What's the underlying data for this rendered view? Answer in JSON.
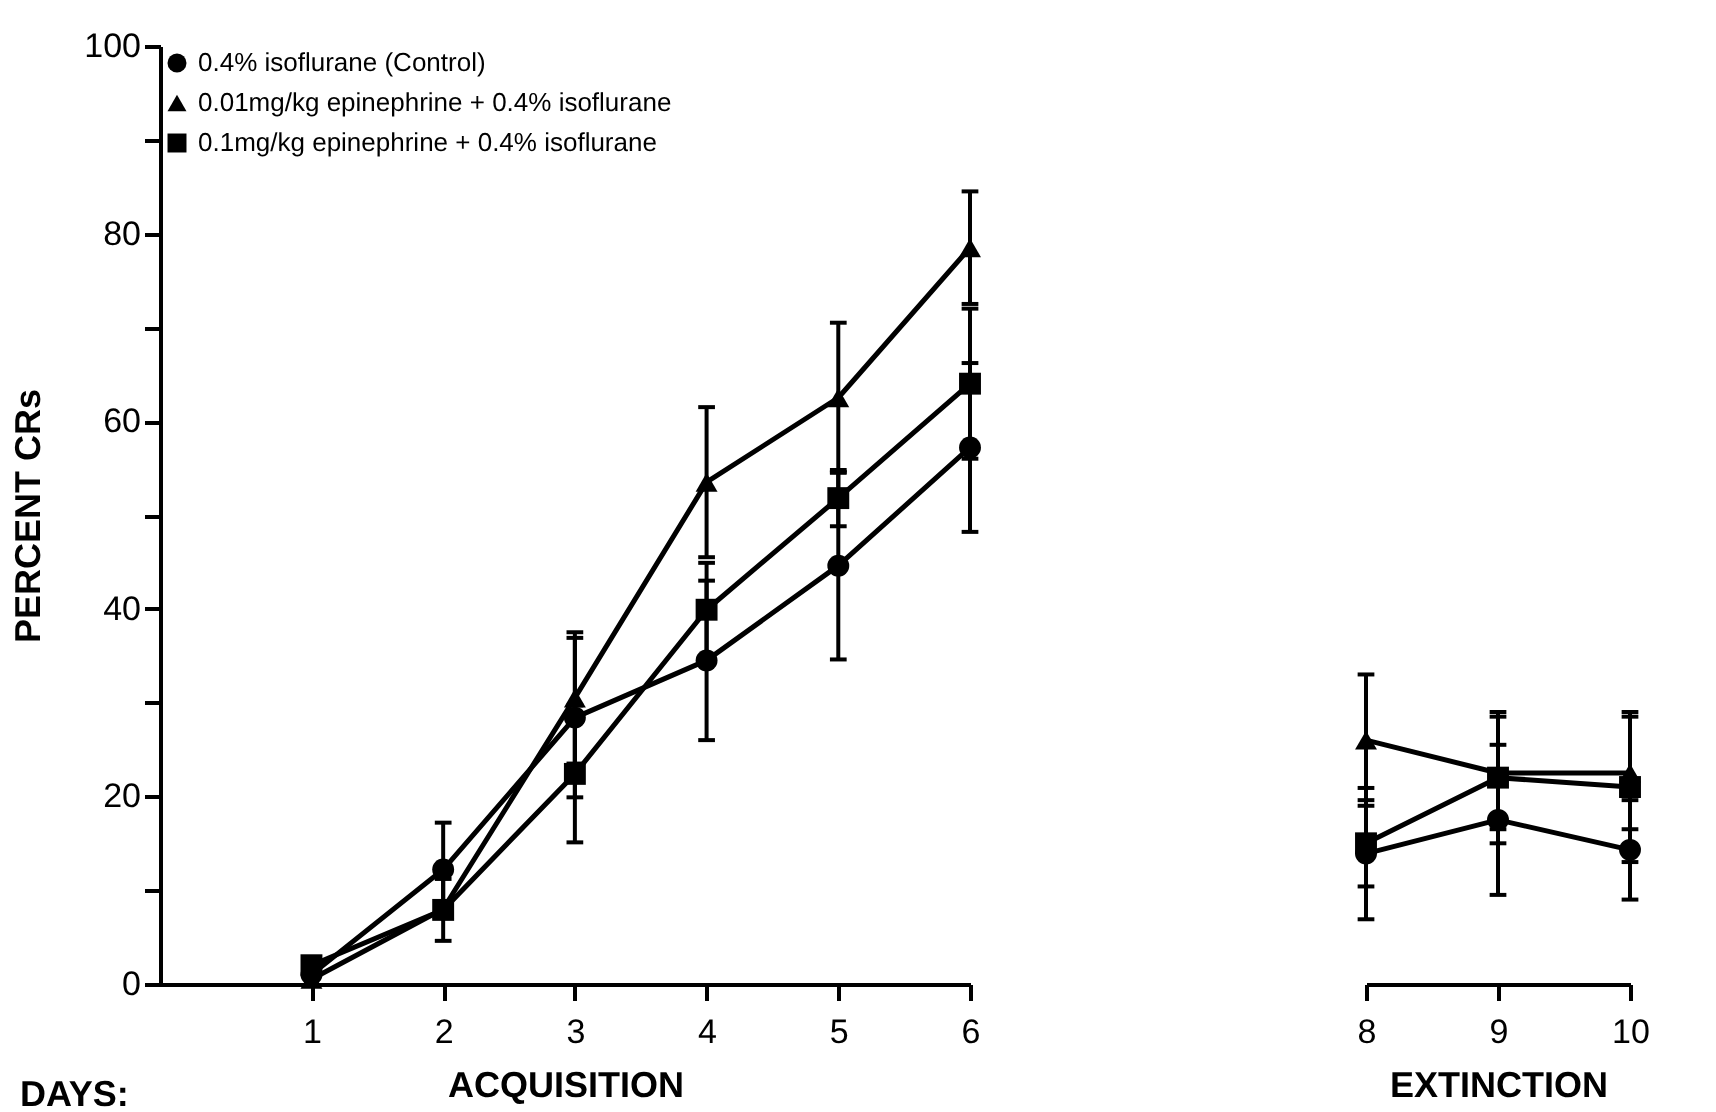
{
  "chart_data": [
    {
      "type": "line",
      "xlabel": "ACQUISITION",
      "ylabel": "PERCENT CRs",
      "x": [
        1,
        2,
        3,
        4,
        5,
        6
      ],
      "xlim": [
        -0.15,
        6
      ],
      "xticks": [
        1,
        2,
        3,
        4,
        5,
        6
      ],
      "ylim": [
        0,
        100
      ],
      "yticks": [
        0,
        {
          "value": 10,
          "label": null
        },
        20,
        {
          "value": 30,
          "label": null
        },
        40,
        {
          "value": 50,
          "label": null
        },
        60,
        {
          "value": 70,
          "label": null
        },
        80,
        {
          "value": 90,
          "label": null
        },
        100
      ],
      "grid": false,
      "legend": "top left",
      "annotations": [
        "DAYS:"
      ],
      "series": [
        {
          "name": "0.4% isoflurane (Control)",
          "color": "#000000",
          "marker": "circle",
          "values": [
            1,
            12.2,
            28.4,
            34.5,
            44.6,
            57.2
          ],
          "errors": [
            null,
            5,
            8.5,
            8.5,
            10,
            9
          ]
        },
        {
          "name": "0.01mg/kg epinephrine + 0.4% isoflurane",
          "color": "#000000",
          "marker": "triangle",
          "values": [
            0.5,
            8,
            30.5,
            53.5,
            62.5,
            78.5
          ],
          "errors": [
            null,
            null,
            7,
            8,
            8,
            6
          ]
        },
        {
          "name": "0.1mg/kg epinephrine + 0.4% isoflurane",
          "color": "#000000",
          "marker": "square",
          "values": [
            2,
            7.9,
            22.4,
            39.9,
            51.8,
            64
          ],
          "errors": [
            null,
            3.3,
            7.3,
            5,
            3,
            8
          ]
        }
      ]
    },
    {
      "type": "line",
      "xlabel": "EXTINCTION",
      "x": [
        8,
        9,
        10
      ],
      "xlim": [
        8,
        10
      ],
      "xticks": [
        8,
        9,
        10
      ],
      "ylim": [
        0,
        100
      ],
      "tick_labels": "x",
      "grid": false,
      "series": [
        {
          "color": "#000000",
          "marker": "circle",
          "values": [
            13.9,
            17.5,
            14.3
          ],
          "errors": [
            7,
            8,
            5.3
          ]
        },
        {
          "color": "#000000",
          "marker": "triangle",
          "values": [
            26,
            22.5,
            22.5
          ],
          "errors": [
            7,
            6,
            6
          ]
        },
        {
          "color": "#000000",
          "marker": "square",
          "values": [
            15,
            22,
            21
          ],
          "errors": [
            4.6,
            7,
            8
          ]
        }
      ]
    }
  ]
}
